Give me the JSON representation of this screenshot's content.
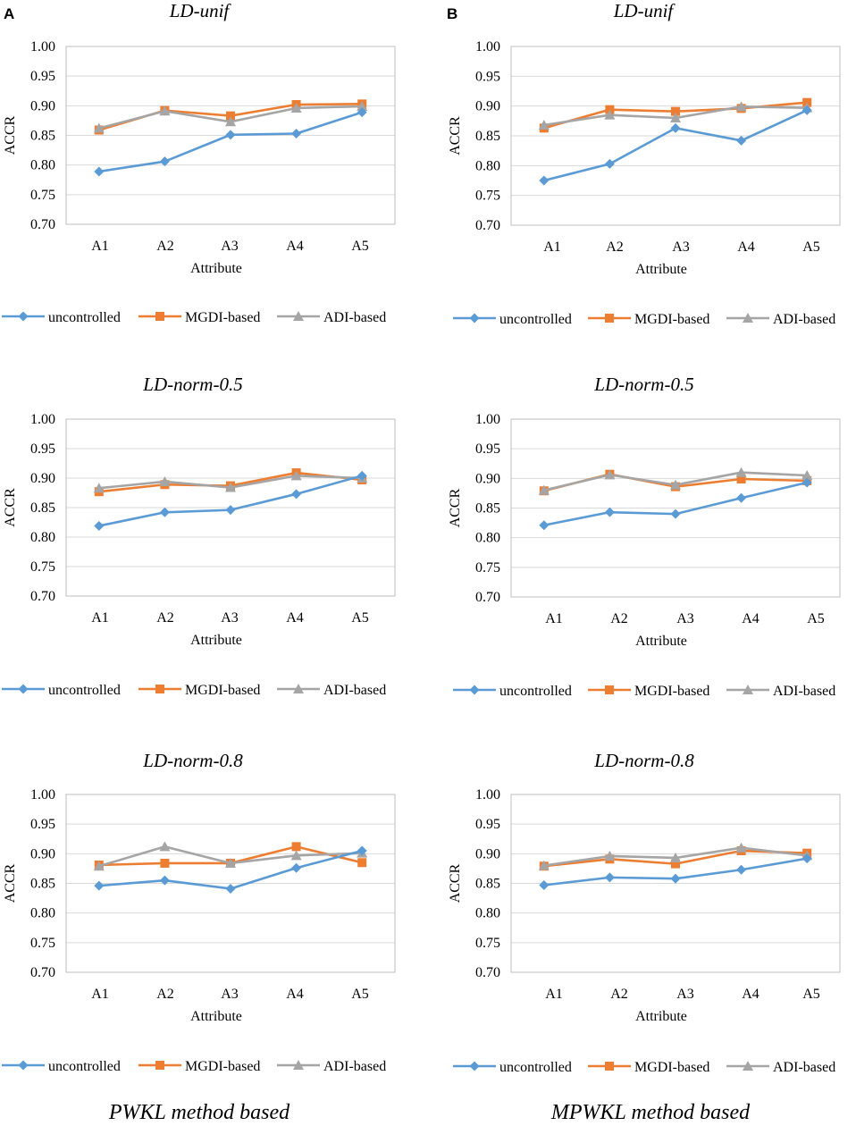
{
  "panel_labels": [
    "A",
    "B"
  ],
  "column_captions": [
    "PWKL method based",
    "MPWKL method based"
  ],
  "legend_items": [
    {
      "name": "uncontrolled",
      "color": "#5B9BD5",
      "marker": "diamond"
    },
    {
      "name": "MGDI-based",
      "color": "#ED7D31",
      "marker": "square"
    },
    {
      "name": "ADI-based",
      "color": "#A5A5A5",
      "marker": "triangle"
    }
  ],
  "chart_data": [
    {
      "type": "line",
      "panel": "A",
      "title": "LD-unif",
      "xlabel": "Attribute",
      "ylabel": "ACCR",
      "categories": [
        "A1",
        "A2",
        "A3",
        "A4",
        "A5"
      ],
      "ylim": [
        0.7,
        1.0
      ],
      "yticks": [
        "0.70",
        "0.75",
        "0.80",
        "0.85",
        "0.90",
        "0.95",
        "1.00"
      ],
      "series": [
        {
          "name": "uncontrolled",
          "values": [
            0.789,
            0.806,
            0.851,
            0.853,
            0.889
          ]
        },
        {
          "name": "MGDI-based",
          "values": [
            0.859,
            0.892,
            0.883,
            0.902,
            0.903
          ]
        },
        {
          "name": "ADI-based",
          "values": [
            0.862,
            0.891,
            0.873,
            0.896,
            0.899
          ]
        }
      ]
    },
    {
      "type": "line",
      "panel": "B",
      "title": "LD-unif",
      "xlabel": "Attribute",
      "ylabel": "ACCR",
      "categories": [
        "A1",
        "A2",
        "A3",
        "A4",
        "A5"
      ],
      "ylim": [
        0.7,
        1.0
      ],
      "yticks": [
        "0.70",
        "0.75",
        "0.80",
        "0.85",
        "0.90",
        "0.95",
        "1.00"
      ],
      "series": [
        {
          "name": "uncontrolled",
          "values": [
            0.775,
            0.803,
            0.863,
            0.842,
            0.893
          ]
        },
        {
          "name": "MGDI-based",
          "values": [
            0.863,
            0.894,
            0.891,
            0.896,
            0.906
          ]
        },
        {
          "name": "ADI-based",
          "values": [
            0.868,
            0.885,
            0.88,
            0.899,
            0.897
          ]
        }
      ]
    },
    {
      "type": "line",
      "panel": "A",
      "title": "LD-norm-0.5",
      "xlabel": "Attribute",
      "ylabel": "ACCR",
      "categories": [
        "A1",
        "A2",
        "A3",
        "A4",
        "A5"
      ],
      "ylim": [
        0.7,
        1.0
      ],
      "yticks": [
        "0.70",
        "0.75",
        "0.80",
        "0.85",
        "0.90",
        "0.95",
        "1.00"
      ],
      "series": [
        {
          "name": "uncontrolled",
          "values": [
            0.819,
            0.842,
            0.846,
            0.873,
            0.904
          ]
        },
        {
          "name": "MGDI-based",
          "values": [
            0.877,
            0.889,
            0.887,
            0.909,
            0.897
          ]
        },
        {
          "name": "ADI-based",
          "values": [
            0.883,
            0.894,
            0.884,
            0.904,
            0.9
          ]
        }
      ]
    },
    {
      "type": "line",
      "panel": "B",
      "title": "LD-norm-0.5",
      "xlabel": "Attribute",
      "ylabel": "ACCR",
      "categories": [
        "A1",
        "A2",
        "A3",
        "A4",
        "A5"
      ],
      "ylim": [
        0.7,
        1.0
      ],
      "yticks": [
        "0.70",
        "0.75",
        "0.80",
        "0.85",
        "0.90",
        "0.95",
        "1.00"
      ],
      "series": [
        {
          "name": "uncontrolled",
          "values": [
            0.821,
            0.843,
            0.84,
            0.867,
            0.893
          ]
        },
        {
          "name": "MGDI-based",
          "values": [
            0.879,
            0.907,
            0.886,
            0.899,
            0.896
          ]
        },
        {
          "name": "ADI-based",
          "values": [
            0.88,
            0.906,
            0.889,
            0.91,
            0.905
          ]
        }
      ]
    },
    {
      "type": "line",
      "panel": "A",
      "title": "LD-norm-0.8",
      "xlabel": "Attribute",
      "ylabel": "ACCR",
      "categories": [
        "A1",
        "A2",
        "A3",
        "A4",
        "A5"
      ],
      "ylim": [
        0.7,
        1.0
      ],
      "yticks": [
        "0.70",
        "0.75",
        "0.80",
        "0.85",
        "0.90",
        "0.95",
        "1.00"
      ],
      "series": [
        {
          "name": "uncontrolled",
          "values": [
            0.846,
            0.855,
            0.841,
            0.876,
            0.905
          ]
        },
        {
          "name": "MGDI-based",
          "values": [
            0.881,
            0.884,
            0.884,
            0.912,
            0.885
          ]
        },
        {
          "name": "ADI-based",
          "values": [
            0.879,
            0.912,
            0.884,
            0.897,
            0.901
          ]
        }
      ]
    },
    {
      "type": "line",
      "panel": "B",
      "title": "LD-norm-0.8",
      "xlabel": "Attribute",
      "ylabel": "ACCR",
      "categories": [
        "A1",
        "A2",
        "A3",
        "A4",
        "A5"
      ],
      "ylim": [
        0.7,
        1.0
      ],
      "yticks": [
        "0.70",
        "0.75",
        "0.80",
        "0.85",
        "0.90",
        "0.95",
        "1.00"
      ],
      "series": [
        {
          "name": "uncontrolled",
          "values": [
            0.847,
            0.86,
            0.858,
            0.873,
            0.892
          ]
        },
        {
          "name": "MGDI-based",
          "values": [
            0.879,
            0.891,
            0.883,
            0.905,
            0.901
          ]
        },
        {
          "name": "ADI-based",
          "values": [
            0.88,
            0.896,
            0.893,
            0.91,
            0.897
          ]
        }
      ]
    }
  ]
}
